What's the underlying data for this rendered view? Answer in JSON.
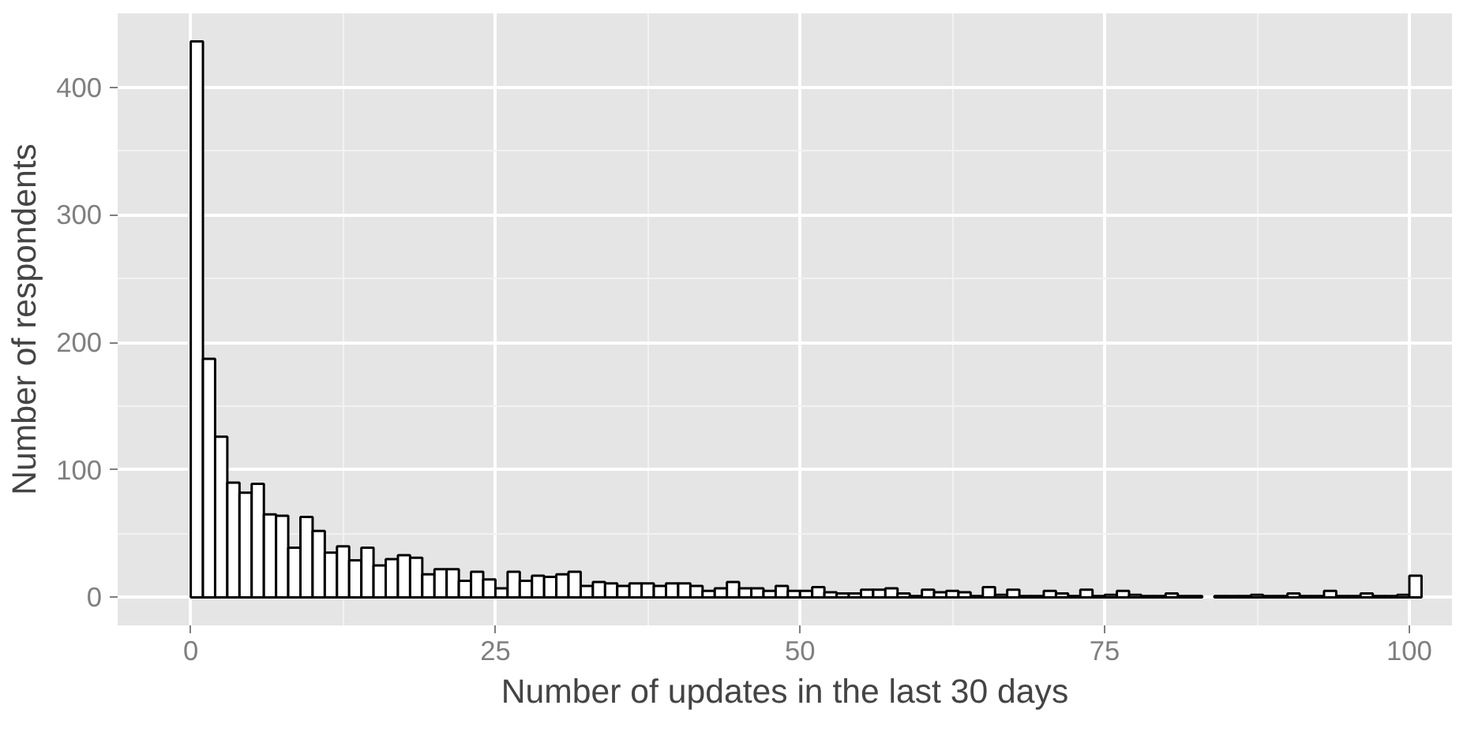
{
  "chart_data": {
    "type": "histogram",
    "xlabel": "Number of updates in the last 30 days",
    "ylabel": "Number of respondents",
    "bins": [
      0,
      1,
      2,
      3,
      4,
      5,
      6,
      7,
      8,
      9,
      10,
      11,
      12,
      13,
      14,
      15,
      16,
      17,
      18,
      19,
      20,
      21,
      22,
      23,
      24,
      25,
      26,
      27,
      28,
      29,
      30,
      31,
      32,
      33,
      34,
      35,
      36,
      37,
      38,
      39,
      40,
      41,
      42,
      43,
      44,
      45,
      46,
      47,
      48,
      49,
      50,
      51,
      52,
      53,
      54,
      55,
      56,
      57,
      58,
      59,
      60,
      61,
      62,
      63,
      64,
      65,
      66,
      67,
      68,
      69,
      70,
      71,
      72,
      73,
      74,
      75,
      76,
      77,
      78,
      79,
      80,
      81,
      82,
      83,
      84,
      85,
      86,
      87,
      88,
      89,
      90,
      91,
      92,
      93,
      94,
      95,
      96,
      97,
      98,
      99,
      100,
      101
    ],
    "values": [
      436,
      187,
      126,
      90,
      82,
      89,
      65,
      64,
      39,
      63,
      52,
      35,
      40,
      29,
      39,
      25,
      30,
      33,
      31,
      18,
      22,
      22,
      13,
      20,
      14,
      7,
      20,
      13,
      17,
      16,
      18,
      20,
      9,
      12,
      11,
      9,
      11,
      11,
      9,
      11,
      11,
      9,
      5,
      7,
      12,
      7,
      7,
      5,
      9,
      5,
      5,
      8,
      4,
      3,
      3,
      6,
      6,
      7,
      3,
      1,
      6,
      4,
      5,
      4,
      1,
      8,
      2,
      6,
      1,
      1,
      5,
      3,
      1,
      6,
      1,
      2,
      5,
      2,
      1,
      1,
      3,
      1,
      1,
      0,
      1,
      1,
      1,
      2,
      1,
      1,
      3,
      1,
      1,
      5,
      1,
      1,
      3,
      1,
      1,
      2,
      17
    ],
    "color": "#ffffff",
    "xlim": [
      -6,
      103.5
    ],
    "ylim": [
      -22,
      458
    ],
    "xticks": [
      0,
      25,
      50,
      75,
      100
    ],
    "yticks": [
      0,
      100,
      200,
      300,
      400
    ],
    "grid": true
  }
}
